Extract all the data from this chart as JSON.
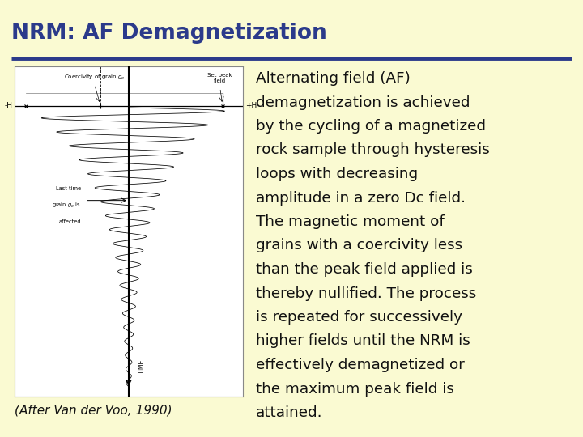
{
  "title": "NRM: AF Demagnetization",
  "title_color": "#2B3A8B",
  "background_color": "#FAFAD2",
  "separator_color": "#2B3A8B",
  "caption": "(After Van der Voo, 1990)",
  "body_text_color": "#111111",
  "caption_color": "#111111",
  "title_fontsize": 19,
  "body_fontsize": 13.2,
  "caption_fontsize": 11,
  "diagram_bg": "#ffffff",
  "diagram_border": "#aaaaaa",
  "body_lines": [
    "Alternating field (AF)",
    "demagnetization is achieved",
    "by the cycling of a magnetized",
    "rock sample through hysteresis",
    "loops with decreasing",
    "amplitude in a zero Dc field.",
    "The magnetic moment of",
    "grains with a coercivity less",
    "than the peak field applied is",
    "thereby nullified. The process",
    "is repeated for successively",
    "higher fields until the NRM is",
    "effectively demagnetized or",
    "the maximum peak field is",
    "attained."
  ]
}
